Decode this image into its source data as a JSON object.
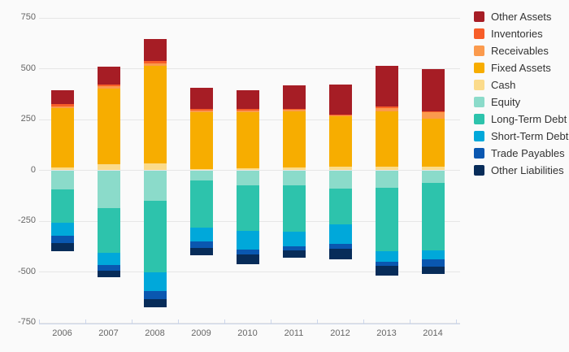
{
  "chart_data": {
    "type": "bar",
    "stacked": true,
    "title": "",
    "xlabel": "",
    "ylabel": "",
    "categories": [
      "2006",
      "2007",
      "2008",
      "2009",
      "2010",
      "2011",
      "2012",
      "2013",
      "2014"
    ],
    "series": [
      {
        "name": "Other Assets",
        "color": "#a61d25",
        "values": [
          68,
          88,
          110,
          104,
          92,
          117,
          147,
          202,
          205
        ]
      },
      {
        "name": "Inventories",
        "color": "#f75d28",
        "values": [
          10,
          10,
          10,
          7,
          8,
          5,
          4,
          7,
          5
        ]
      },
      {
        "name": "Receivables",
        "color": "#fb9a4d",
        "values": [
          10,
          12,
          12,
          9,
          8,
          8,
          6,
          15,
          32
        ]
      },
      {
        "name": "Fixed Assets",
        "color": "#f7ad00",
        "values": [
          292,
          372,
          480,
          280,
          276,
          273,
          247,
          273,
          236
        ]
      },
      {
        "name": "Cash",
        "color": "#fbdb8b",
        "values": [
          11,
          28,
          33,
          5,
          10,
          14,
          16,
          16,
          17
        ]
      },
      {
        "name": "Equity",
        "color": "#8bdbca",
        "values": [
          -93,
          -184,
          -149,
          -47,
          -70,
          -73,
          -87,
          -84,
          -60
        ]
      },
      {
        "name": "Long-Term Debt",
        "color": "#2dc3ac",
        "values": [
          -164,
          -219,
          -350,
          -233,
          -226,
          -227,
          -177,
          -312,
          -330
        ]
      },
      {
        "name": "Short-Term Debt",
        "color": "#00a8da",
        "values": [
          -63,
          -61,
          -94,
          -67,
          -92,
          -73,
          -96,
          -51,
          -47
        ]
      },
      {
        "name": "Trade Payables",
        "color": "#0a57b0",
        "values": [
          -37,
          -29,
          -40,
          -32,
          -24,
          -20,
          -23,
          -20,
          -36
        ]
      },
      {
        "name": "Other Liabilities",
        "color": "#072c59",
        "values": [
          -40,
          -30,
          -40,
          -37,
          -47,
          -34,
          -51,
          -47,
          -33
        ]
      }
    ],
    "yticks": [
      750,
      500,
      250,
      0,
      -250,
      -500,
      -750
    ],
    "ylim": [
      -750,
      750
    ],
    "grid": true,
    "legend_position": "top-right"
  },
  "style": {
    "background": "#fafafa",
    "gridline_color": "#e6e6e6",
    "axis_line_color": "#ccd6eb",
    "tick_label_color": "#666666",
    "legend_text_color": "#333333"
  }
}
